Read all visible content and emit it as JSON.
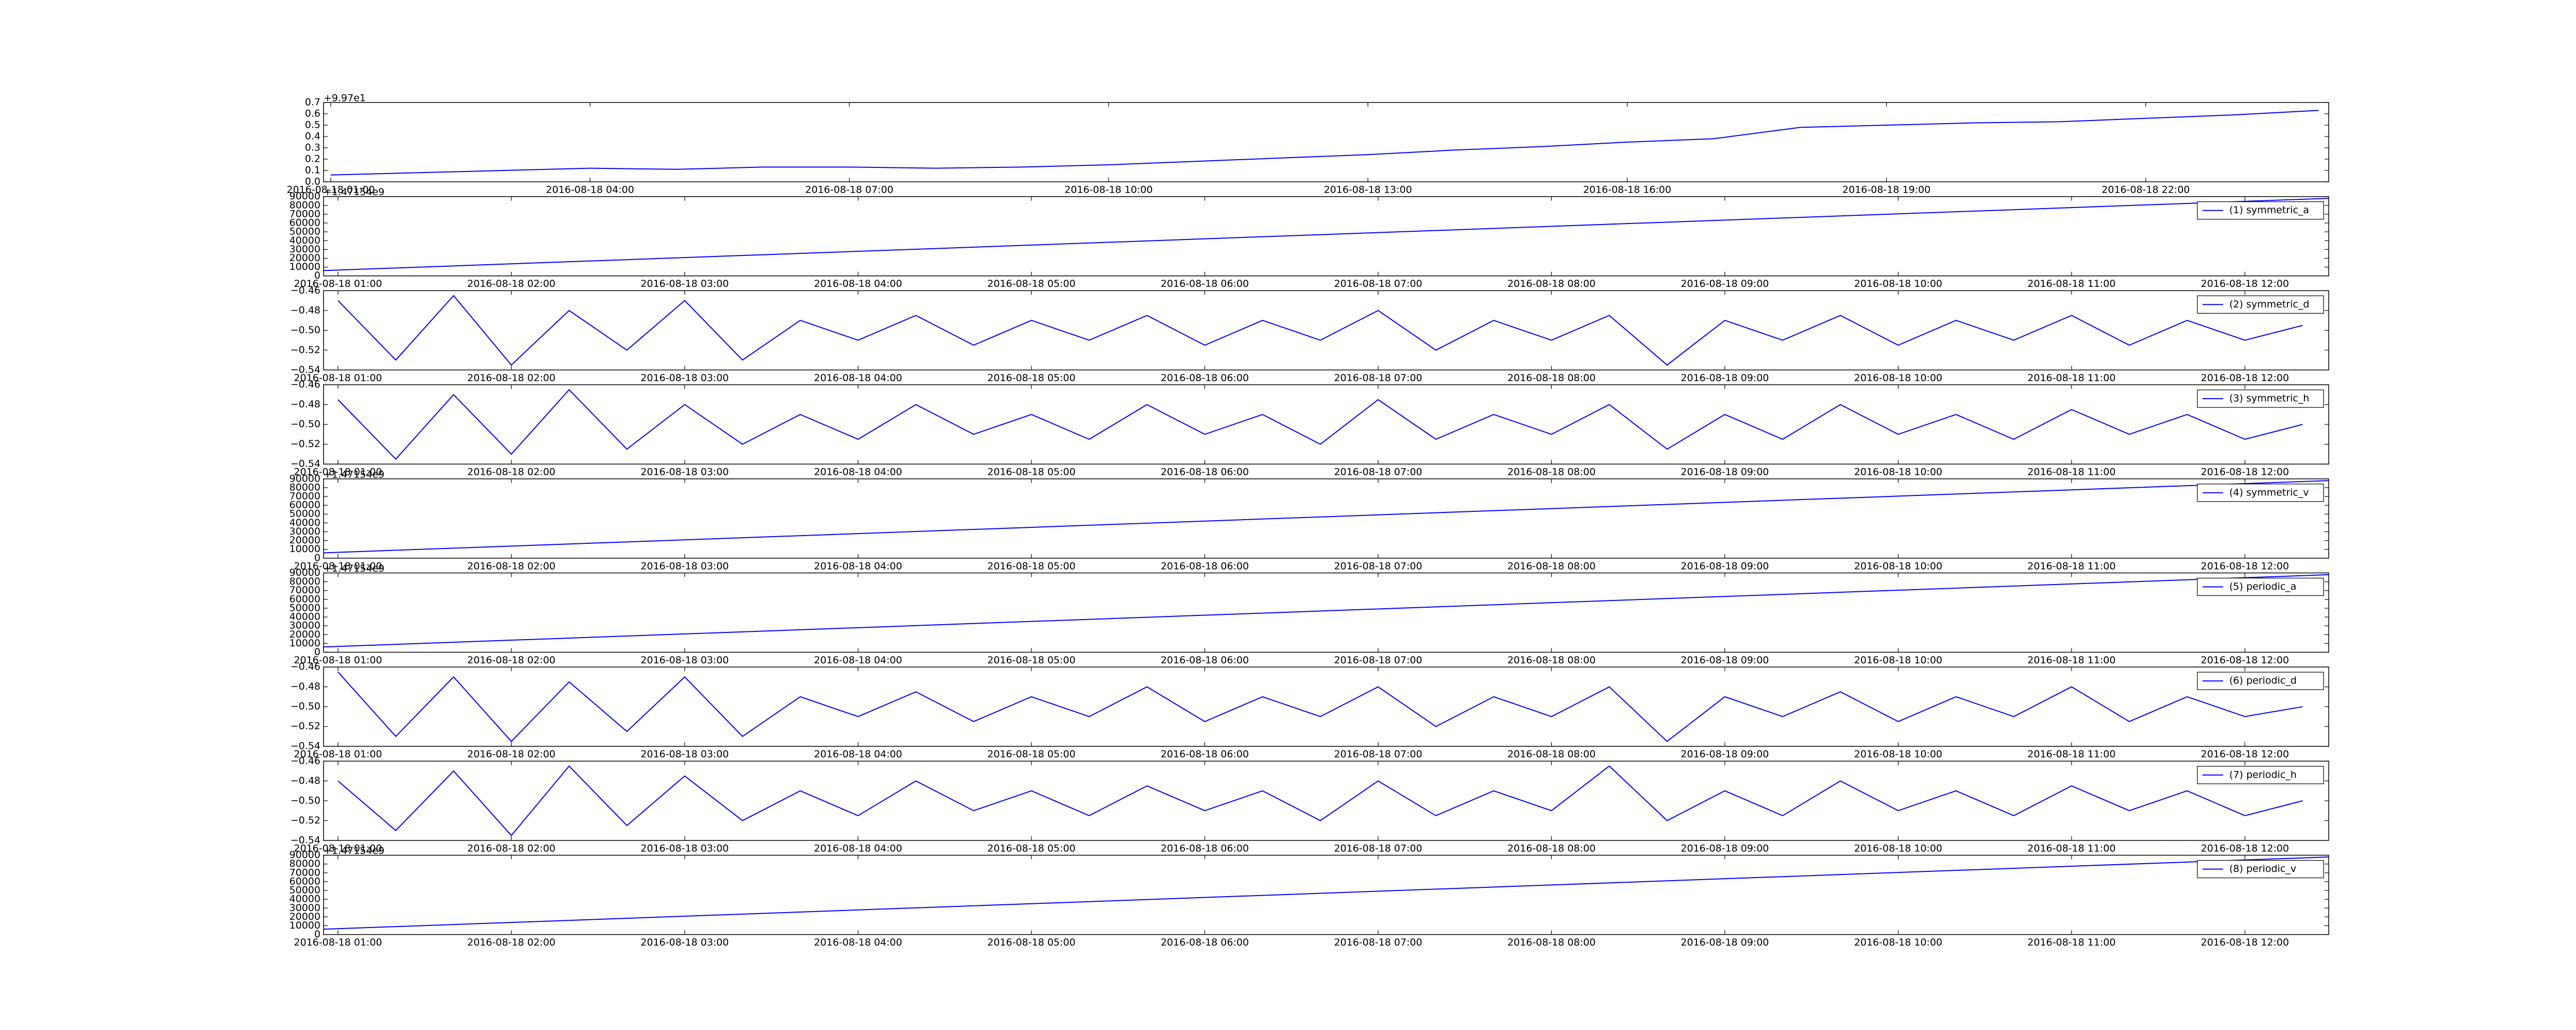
{
  "chart_data": [
    {
      "type": "line",
      "offset_text": "+9.97e1",
      "x": [
        "2016-08-18 01:00",
        "2016-08-18 02:00",
        "2016-08-18 03:00",
        "2016-08-18 04:00",
        "2016-08-18 05:00",
        "2016-08-18 06:00",
        "2016-08-18 07:00",
        "2016-08-18 08:00",
        "2016-08-18 09:00",
        "2016-08-18 10:00",
        "2016-08-18 11:00",
        "2016-08-18 12:00",
        "2016-08-18 13:00",
        "2016-08-18 14:00",
        "2016-08-18 15:00",
        "2016-08-18 16:00",
        "2016-08-18 17:00",
        "2016-08-18 18:00",
        "2016-08-18 19:00",
        "2016-08-18 20:00",
        "2016-08-18 21:00",
        "2016-08-18 22:00",
        "2016-08-18 23:00",
        "2016-08-19 00:00"
      ],
      "series": [
        {
          "color": "#0000ff",
          "values": [
            0.06,
            0.08,
            0.1,
            0.12,
            0.11,
            0.13,
            0.13,
            0.12,
            0.13,
            0.15,
            0.18,
            0.21,
            0.24,
            0.28,
            0.31,
            0.35,
            0.38,
            0.48,
            0.5,
            0.52,
            0.53,
            0.56,
            0.59,
            0.63
          ]
        }
      ],
      "xlim": [
        "2016-08-18 00:55",
        "2016-08-19 00:07"
      ],
      "xticks": [
        "2016-08-18 01:00",
        "2016-08-18 04:00",
        "2016-08-18 07:00",
        "2016-08-18 10:00",
        "2016-08-18 13:00",
        "2016-08-18 16:00",
        "2016-08-18 19:00",
        "2016-08-18 22:00"
      ],
      "ylim": [
        0,
        0.7
      ],
      "yticks": [
        {
          "value": 0,
          "label": "0.0"
        },
        0.1,
        0.2,
        0.3,
        0.4,
        0.5,
        0.6,
        0.7
      ]
    },
    {
      "type": "line",
      "offset_text": "+1.47154e9",
      "legend": "upper right",
      "x": [
        "2016-08-18 00:55",
        "2016-08-18 12:29"
      ],
      "series": [
        {
          "name": "(1) symmetric_a",
          "color": "#0000ff",
          "values": [
            6000,
            88000
          ]
        }
      ],
      "xlim": [
        "2016-08-18 00:55",
        "2016-08-18 12:29"
      ],
      "xticks": [
        "2016-08-18 01:00",
        "2016-08-18 02:00",
        "2016-08-18 03:00",
        "2016-08-18 04:00",
        "2016-08-18 05:00",
        "2016-08-18 06:00",
        "2016-08-18 07:00",
        "2016-08-18 08:00",
        "2016-08-18 09:00",
        "2016-08-18 10:00",
        "2016-08-18 11:00",
        "2016-08-18 12:00"
      ],
      "ylim": [
        0,
        90000
      ],
      "yticks": [
        0,
        10000,
        20000,
        30000,
        40000,
        50000,
        60000,
        70000,
        80000,
        90000
      ]
    },
    {
      "type": "line",
      "legend": "upper right",
      "x": [
        "2016-08-18 01:00",
        "2016-08-18 01:20",
        "2016-08-18 01:40",
        "2016-08-18 02:00",
        "2016-08-18 02:20",
        "2016-08-18 02:40",
        "2016-08-18 03:00",
        "2016-08-18 03:20",
        "2016-08-18 03:40",
        "2016-08-18 04:00",
        "2016-08-18 04:20",
        "2016-08-18 04:40",
        "2016-08-18 05:00",
        "2016-08-18 05:20",
        "2016-08-18 05:40",
        "2016-08-18 06:00",
        "2016-08-18 06:20",
        "2016-08-18 06:40",
        "2016-08-18 07:00",
        "2016-08-18 07:20",
        "2016-08-18 07:40",
        "2016-08-18 08:00",
        "2016-08-18 08:20",
        "2016-08-18 08:40",
        "2016-08-18 09:00",
        "2016-08-18 09:20",
        "2016-08-18 09:40",
        "2016-08-18 10:00",
        "2016-08-18 10:20",
        "2016-08-18 10:40",
        "2016-08-18 11:00",
        "2016-08-18 11:20",
        "2016-08-18 11:40",
        "2016-08-18 12:00",
        "2016-08-18 12:20"
      ],
      "series": [
        {
          "name": "(2) symmetric_d",
          "color": "#0000ff",
          "values": [
            -0.47,
            -0.53,
            -0.465,
            -0.535,
            -0.48,
            -0.52,
            -0.47,
            -0.53,
            -0.49,
            -0.51,
            -0.485,
            -0.515,
            -0.49,
            -0.51,
            -0.485,
            -0.515,
            -0.49,
            -0.51,
            -0.48,
            -0.52,
            -0.49,
            -0.51,
            -0.485,
            -0.535,
            -0.49,
            -0.51,
            -0.485,
            -0.515,
            -0.49,
            -0.51,
            -0.485,
            -0.515,
            -0.49,
            -0.51,
            -0.495
          ]
        }
      ],
      "xlim": [
        "2016-08-18 00:55",
        "2016-08-18 12:29"
      ],
      "xticks": [
        "2016-08-18 01:00",
        "2016-08-18 02:00",
        "2016-08-18 03:00",
        "2016-08-18 04:00",
        "2016-08-18 05:00",
        "2016-08-18 06:00",
        "2016-08-18 07:00",
        "2016-08-18 08:00",
        "2016-08-18 09:00",
        "2016-08-18 10:00",
        "2016-08-18 11:00",
        "2016-08-18 12:00"
      ],
      "ylim": [
        -0.54,
        -0.46
      ],
      "yticks": [
        {
          "value": -0.54,
          "label": "−0.54"
        },
        {
          "value": -0.52,
          "label": "−0.52"
        },
        {
          "value": -0.5,
          "label": "−0.50"
        },
        {
          "value": -0.48,
          "label": "−0.48"
        },
        {
          "value": -0.46,
          "label": "−0.46"
        }
      ]
    },
    {
      "type": "line",
      "legend": "upper right",
      "x": [
        "2016-08-18 01:00",
        "2016-08-18 01:20",
        "2016-08-18 01:40",
        "2016-08-18 02:00",
        "2016-08-18 02:20",
        "2016-08-18 02:40",
        "2016-08-18 03:00",
        "2016-08-18 03:20",
        "2016-08-18 03:40",
        "2016-08-18 04:00",
        "2016-08-18 04:20",
        "2016-08-18 04:40",
        "2016-08-18 05:00",
        "2016-08-18 05:20",
        "2016-08-18 05:40",
        "2016-08-18 06:00",
        "2016-08-18 06:20",
        "2016-08-18 06:40",
        "2016-08-18 07:00",
        "2016-08-18 07:20",
        "2016-08-18 07:40",
        "2016-08-18 08:00",
        "2016-08-18 08:20",
        "2016-08-18 08:40",
        "2016-08-18 09:00",
        "2016-08-18 09:20",
        "2016-08-18 09:40",
        "2016-08-18 10:00",
        "2016-08-18 10:20",
        "2016-08-18 10:40",
        "2016-08-18 11:00",
        "2016-08-18 11:20",
        "2016-08-18 11:40",
        "2016-08-18 12:00",
        "2016-08-18 12:20"
      ],
      "series": [
        {
          "name": "(3) symmetric_h",
          "color": "#0000ff",
          "values": [
            -0.475,
            -0.535,
            -0.47,
            -0.53,
            -0.465,
            -0.525,
            -0.48,
            -0.52,
            -0.49,
            -0.515,
            -0.48,
            -0.51,
            -0.49,
            -0.515,
            -0.48,
            -0.51,
            -0.49,
            -0.52,
            -0.475,
            -0.515,
            -0.49,
            -0.51,
            -0.48,
            -0.525,
            -0.49,
            -0.515,
            -0.48,
            -0.51,
            -0.49,
            -0.515,
            -0.485,
            -0.51,
            -0.49,
            -0.515,
            -0.5
          ]
        }
      ],
      "xlim": [
        "2016-08-18 00:55",
        "2016-08-18 12:29"
      ],
      "xticks": [
        "2016-08-18 01:00",
        "2016-08-18 02:00",
        "2016-08-18 03:00",
        "2016-08-18 04:00",
        "2016-08-18 05:00",
        "2016-08-18 06:00",
        "2016-08-18 07:00",
        "2016-08-18 08:00",
        "2016-08-18 09:00",
        "2016-08-18 10:00",
        "2016-08-18 11:00",
        "2016-08-18 12:00"
      ],
      "ylim": [
        -0.54,
        -0.46
      ],
      "yticks": [
        {
          "value": -0.54,
          "label": "−0.54"
        },
        {
          "value": -0.52,
          "label": "−0.52"
        },
        {
          "value": -0.5,
          "label": "−0.50"
        },
        {
          "value": -0.48,
          "label": "−0.48"
        },
        {
          "value": -0.46,
          "label": "−0.46"
        }
      ]
    },
    {
      "type": "line",
      "offset_text": "+1.47154e9",
      "legend": "upper right",
      "x": [
        "2016-08-18 00:55",
        "2016-08-18 12:29"
      ],
      "series": [
        {
          "name": "(4) symmetric_v",
          "color": "#0000ff",
          "values": [
            6000,
            88000
          ]
        }
      ],
      "xlim": [
        "2016-08-18 00:55",
        "2016-08-18 12:29"
      ],
      "xticks": [
        "2016-08-18 01:00",
        "2016-08-18 02:00",
        "2016-08-18 03:00",
        "2016-08-18 04:00",
        "2016-08-18 05:00",
        "2016-08-18 06:00",
        "2016-08-18 07:00",
        "2016-08-18 08:00",
        "2016-08-18 09:00",
        "2016-08-18 10:00",
        "2016-08-18 11:00",
        "2016-08-18 12:00"
      ],
      "ylim": [
        0,
        90000
      ],
      "yticks": [
        0,
        10000,
        20000,
        30000,
        40000,
        50000,
        60000,
        70000,
        80000,
        90000
      ]
    },
    {
      "type": "line",
      "offset_text": "+1.47154e9",
      "legend": "upper right",
      "x": [
        "2016-08-18 00:55",
        "2016-08-18 12:29"
      ],
      "series": [
        {
          "name": "(5) periodic_a",
          "color": "#0000ff",
          "values": [
            6000,
            88000
          ]
        }
      ],
      "xlim": [
        "2016-08-18 00:55",
        "2016-08-18 12:29"
      ],
      "xticks": [
        "2016-08-18 01:00",
        "2016-08-18 02:00",
        "2016-08-18 03:00",
        "2016-08-18 04:00",
        "2016-08-18 05:00",
        "2016-08-18 06:00",
        "2016-08-18 07:00",
        "2016-08-18 08:00",
        "2016-08-18 09:00",
        "2016-08-18 10:00",
        "2016-08-18 11:00",
        "2016-08-18 12:00"
      ],
      "ylim": [
        0,
        90000
      ],
      "yticks": [
        0,
        10000,
        20000,
        30000,
        40000,
        50000,
        60000,
        70000,
        80000,
        90000
      ]
    },
    {
      "type": "line",
      "legend": "upper right",
      "x": [
        "2016-08-18 01:00",
        "2016-08-18 01:20",
        "2016-08-18 01:40",
        "2016-08-18 02:00",
        "2016-08-18 02:20",
        "2016-08-18 02:40",
        "2016-08-18 03:00",
        "2016-08-18 03:20",
        "2016-08-18 03:40",
        "2016-08-18 04:00",
        "2016-08-18 04:20",
        "2016-08-18 04:40",
        "2016-08-18 05:00",
        "2016-08-18 05:20",
        "2016-08-18 05:40",
        "2016-08-18 06:00",
        "2016-08-18 06:20",
        "2016-08-18 06:40",
        "2016-08-18 07:00",
        "2016-08-18 07:20",
        "2016-08-18 07:40",
        "2016-08-18 08:00",
        "2016-08-18 08:20",
        "2016-08-18 08:40",
        "2016-08-18 09:00",
        "2016-08-18 09:20",
        "2016-08-18 09:40",
        "2016-08-18 10:00",
        "2016-08-18 10:20",
        "2016-08-18 10:40",
        "2016-08-18 11:00",
        "2016-08-18 11:20",
        "2016-08-18 11:40",
        "2016-08-18 12:00",
        "2016-08-18 12:20"
      ],
      "series": [
        {
          "name": "(6) periodic_d",
          "color": "#0000ff",
          "values": [
            -0.465,
            -0.53,
            -0.47,
            -0.535,
            -0.475,
            -0.525,
            -0.47,
            -0.53,
            -0.49,
            -0.51,
            -0.485,
            -0.515,
            -0.49,
            -0.51,
            -0.48,
            -0.515,
            -0.49,
            -0.51,
            -0.48,
            -0.52,
            -0.49,
            -0.51,
            -0.48,
            -0.535,
            -0.49,
            -0.51,
            -0.485,
            -0.515,
            -0.49,
            -0.51,
            -0.48,
            -0.515,
            -0.49,
            -0.51,
            -0.5
          ]
        }
      ],
      "xlim": [
        "2016-08-18 00:55",
        "2016-08-18 12:29"
      ],
      "xticks": [
        "2016-08-18 01:00",
        "2016-08-18 02:00",
        "2016-08-18 03:00",
        "2016-08-18 04:00",
        "2016-08-18 05:00",
        "2016-08-18 06:00",
        "2016-08-18 07:00",
        "2016-08-18 08:00",
        "2016-08-18 09:00",
        "2016-08-18 10:00",
        "2016-08-18 11:00",
        "2016-08-18 12:00"
      ],
      "ylim": [
        -0.54,
        -0.46
      ],
      "yticks": [
        {
          "value": -0.54,
          "label": "−0.54"
        },
        {
          "value": -0.52,
          "label": "−0.52"
        },
        {
          "value": -0.5,
          "label": "−0.50"
        },
        {
          "value": -0.48,
          "label": "−0.48"
        },
        {
          "value": -0.46,
          "label": "−0.46"
        }
      ]
    },
    {
      "type": "line",
      "legend": "upper right",
      "x": [
        "2016-08-18 01:00",
        "2016-08-18 01:20",
        "2016-08-18 01:40",
        "2016-08-18 02:00",
        "2016-08-18 02:20",
        "2016-08-18 02:40",
        "2016-08-18 03:00",
        "2016-08-18 03:20",
        "2016-08-18 03:40",
        "2016-08-18 04:00",
        "2016-08-18 04:20",
        "2016-08-18 04:40",
        "2016-08-18 05:00",
        "2016-08-18 05:20",
        "2016-08-18 05:40",
        "2016-08-18 06:00",
        "2016-08-18 06:20",
        "2016-08-18 06:40",
        "2016-08-18 07:00",
        "2016-08-18 07:20",
        "2016-08-18 07:40",
        "2016-08-18 08:00",
        "2016-08-18 08:20",
        "2016-08-18 08:40",
        "2016-08-18 09:00",
        "2016-08-18 09:20",
        "2016-08-18 09:40",
        "2016-08-18 10:00",
        "2016-08-18 10:20",
        "2016-08-18 10:40",
        "2016-08-18 11:00",
        "2016-08-18 11:20",
        "2016-08-18 11:40",
        "2016-08-18 12:00",
        "2016-08-18 12:20"
      ],
      "series": [
        {
          "name": "(7) periodic_h",
          "color": "#0000ff",
          "values": [
            -0.48,
            -0.53,
            -0.47,
            -0.535,
            -0.465,
            -0.525,
            -0.475,
            -0.52,
            -0.49,
            -0.515,
            -0.48,
            -0.51,
            -0.49,
            -0.515,
            -0.485,
            -0.51,
            -0.49,
            -0.52,
            -0.48,
            -0.515,
            -0.49,
            -0.51,
            -0.465,
            -0.52,
            -0.49,
            -0.515,
            -0.48,
            -0.51,
            -0.49,
            -0.515,
            -0.485,
            -0.51,
            -0.49,
            -0.515,
            -0.5
          ]
        }
      ],
      "xlim": [
        "2016-08-18 00:55",
        "2016-08-18 12:29"
      ],
      "xticks": [
        "2016-08-18 01:00",
        "2016-08-18 02:00",
        "2016-08-18 03:00",
        "2016-08-18 04:00",
        "2016-08-18 05:00",
        "2016-08-18 06:00",
        "2016-08-18 07:00",
        "2016-08-18 08:00",
        "2016-08-18 09:00",
        "2016-08-18 10:00",
        "2016-08-18 11:00",
        "2016-08-18 12:00"
      ],
      "ylim": [
        -0.54,
        -0.46
      ],
      "yticks": [
        {
          "value": -0.54,
          "label": "−0.54"
        },
        {
          "value": -0.52,
          "label": "−0.52"
        },
        {
          "value": -0.5,
          "label": "−0.50"
        },
        {
          "value": -0.48,
          "label": "−0.48"
        },
        {
          "value": -0.46,
          "label": "−0.46"
        }
      ]
    },
    {
      "type": "line",
      "offset_text": "+1.47154e9",
      "legend": "upper right",
      "x": [
        "2016-08-18 00:55",
        "2016-08-18 12:29"
      ],
      "series": [
        {
          "name": "(8) periodic_v",
          "color": "#0000ff",
          "values": [
            6000,
            88000
          ]
        }
      ],
      "xlim": [
        "2016-08-18 00:55",
        "2016-08-18 12:29"
      ],
      "xticks": [
        "2016-08-18 01:00",
        "2016-08-18 02:00",
        "2016-08-18 03:00",
        "2016-08-18 04:00",
        "2016-08-18 05:00",
        "2016-08-18 06:00",
        "2016-08-18 07:00",
        "2016-08-18 08:00",
        "2016-08-18 09:00",
        "2016-08-18 10:00",
        "2016-08-18 11:00",
        "2016-08-18 12:00"
      ],
      "ylim": [
        0,
        90000
      ],
      "yticks": [
        0,
        10000,
        20000,
        30000,
        40000,
        50000,
        60000,
        70000,
        80000,
        90000
      ]
    }
  ]
}
